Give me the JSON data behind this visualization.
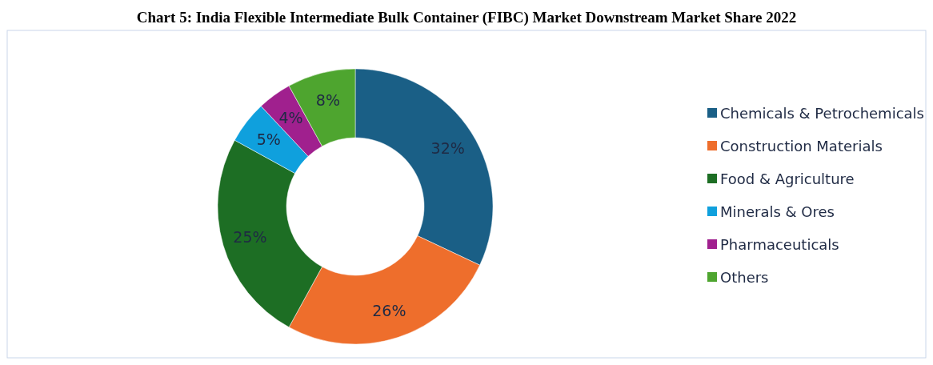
{
  "chart_data": {
    "type": "donut",
    "title": "Chart 5: India Flexible Intermediate Bulk Container (FIBC) Market Downstream Market Share 2022",
    "categories": [
      "Chemicals & Petrochemicals",
      "Construction Materials",
      "Food & Agriculture",
      "Minerals & Ores",
      "Pharmaceuticals",
      "Others"
    ],
    "values": [
      32,
      26,
      25,
      5,
      4,
      8
    ],
    "colors": [
      "#1a5f86",
      "#ee6e2c",
      "#1d6e24",
      "#0fa0dd",
      "#a0208e",
      "#4ea52f"
    ],
    "value_labels": [
      "32%",
      "26%",
      "25%",
      "5%",
      "4%",
      "8%"
    ],
    "legend": "right"
  }
}
